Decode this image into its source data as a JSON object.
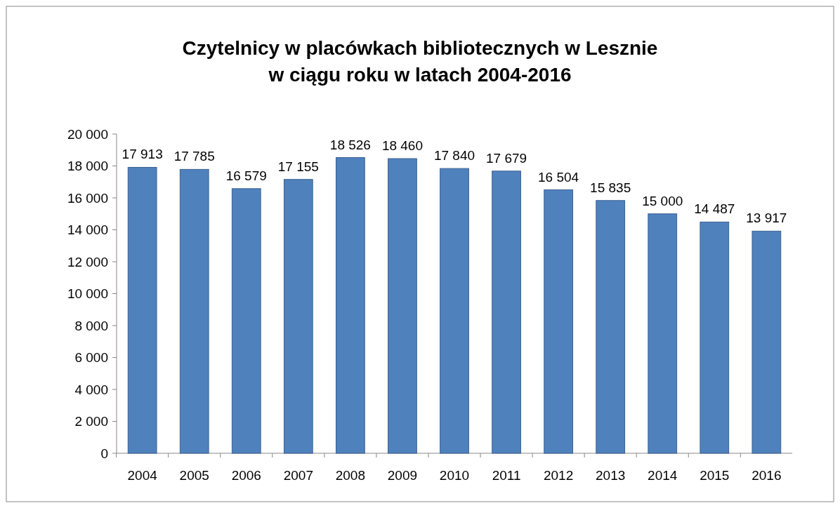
{
  "chart_data": {
    "type": "bar",
    "title": "Czytelnicy w placówkach bibliotecznych w Lesznie\nw ciągu roku w latach 2004-2016",
    "categories": [
      "2004",
      "2005",
      "2006",
      "2007",
      "2008",
      "2009",
      "2010",
      "2011",
      "2012",
      "2013",
      "2014",
      "2015",
      "2016"
    ],
    "values": [
      17913,
      17785,
      16579,
      17155,
      18526,
      18460,
      17840,
      17679,
      16504,
      15835,
      15000,
      14487,
      13917
    ],
    "value_labels": [
      "17 913",
      "17 785",
      "16 579",
      "17 155",
      "18 526",
      "18 460",
      "17 840",
      "17 679",
      "16 504",
      "15 835",
      "15 000",
      "14 487",
      "13 917"
    ],
    "color": "#4f81bd",
    "ylim": [
      0,
      20000
    ],
    "yticks": [
      0,
      {
        "value": 2000,
        "label": "2 000"
      },
      {
        "value": 4000,
        "label": "4 000"
      },
      {
        "value": 6000,
        "label": "6 000"
      },
      {
        "value": 8000,
        "label": "8 000"
      },
      {
        "value": 10000,
        "label": "10 000"
      },
      {
        "value": 12000,
        "label": "12 000"
      },
      {
        "value": 14000,
        "label": "14 000"
      },
      {
        "value": 16000,
        "label": "16 000"
      },
      {
        "value": 18000,
        "label": "18 000"
      },
      {
        "value": 20000,
        "label": "20 000"
      }
    ],
    "grid": false
  }
}
